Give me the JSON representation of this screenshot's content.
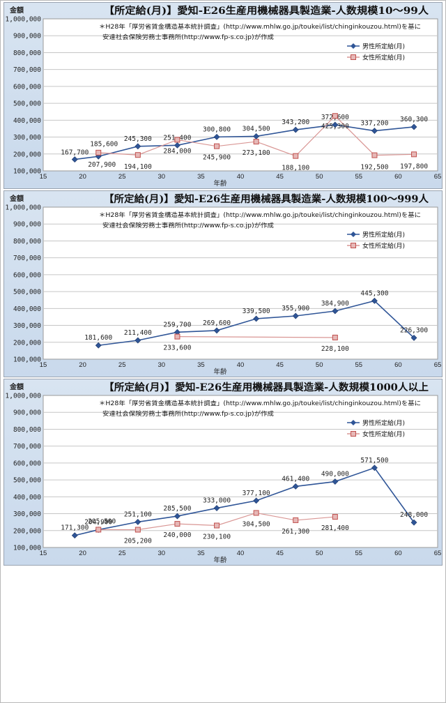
{
  "chart_data": [
    {
      "type": "line",
      "title": "【所定給(月)】愛知-E26生産用機械器具製造業-人数規模10～99人",
      "ylabel": "金額",
      "xlabel": "年齢",
      "note_line1": "＊H28年「厚労省賃金構造基本統計調査」(http://www.mhlw.go.jp/toukei/list/chinginkouzou.html)を基に",
      "note_line2": "安達社会保険労務士事務所(http://www.fp-s.co.jp)が作成",
      "xlim": [
        15,
        65
      ],
      "ylim": [
        100000,
        1000000
      ],
      "x_ticks": [
        15,
        20,
        25,
        30,
        35,
        40,
        45,
        50,
        55,
        60,
        65
      ],
      "y_ticks": [
        "100,000",
        "200,000",
        "300,000",
        "400,000",
        "500,000",
        "600,000",
        "700,000",
        "800,000",
        "900,000",
        "1,000,000"
      ],
      "grid": true,
      "legend_position": "top-right",
      "series": [
        {
          "name": "男性所定給(月)",
          "color": "#2f5597",
          "marker": "diamond",
          "points": [
            {
              "x": 19,
              "y": 167700,
              "label": "167,700"
            },
            {
              "x": 22,
              "y": 185600,
              "label": "185,600"
            },
            {
              "x": 27,
              "y": 245300,
              "label": "245,300"
            },
            {
              "x": 32,
              "y": 251400,
              "label": "251,400"
            },
            {
              "x": 37,
              "y": 300800,
              "label": "300,800"
            },
            {
              "x": 42,
              "y": 304500,
              "label": "304,500"
            },
            {
              "x": 47,
              "y": 343200,
              "label": "343,200"
            },
            {
              "x": 52,
              "y": 372600,
              "label": "372,600"
            },
            {
              "x": 57,
              "y": 337200,
              "label": "337,200"
            },
            {
              "x": 62,
              "y": 360300,
              "label": "360,300"
            }
          ]
        },
        {
          "name": "女性所定給(月)",
          "color": "#c0504d",
          "marker": "square",
          "points": [
            {
              "x": 22,
              "y": 207900,
              "label": "207,900"
            },
            {
              "x": 27,
              "y": 194100,
              "label": "194,100"
            },
            {
              "x": 32,
              "y": 284000,
              "label": "284,000"
            },
            {
              "x": 37,
              "y": 245900,
              "label": "245,900"
            },
            {
              "x": 42,
              "y": 273100,
              "label": "273,100"
            },
            {
              "x": 47,
              "y": 188100,
              "label": "188,100"
            },
            {
              "x": 52,
              "y": 425300,
              "label": "425,300"
            },
            {
              "x": 57,
              "y": 192500,
              "label": "192,500"
            },
            {
              "x": 62,
              "y": 197800,
              "label": "197,800"
            }
          ]
        }
      ]
    },
    {
      "type": "line",
      "title": "【所定給(月)】愛知-E26生産用機械器具製造業-人数規模100～999人",
      "ylabel": "金額",
      "xlabel": "年齢",
      "note_line1": "＊H28年「厚労省賃金構造基本統計調査」(http://www.mhlw.go.jp/toukei/list/chinginkouzou.html)を基に",
      "note_line2": "安達社会保険労務士事務所(http://www.fp-s.co.jp)が作成",
      "xlim": [
        15,
        65
      ],
      "ylim": [
        100000,
        1000000
      ],
      "x_ticks": [
        15,
        20,
        25,
        30,
        35,
        40,
        45,
        50,
        55,
        60,
        65
      ],
      "y_ticks": [
        "100,000",
        "200,000",
        "300,000",
        "400,000",
        "500,000",
        "600,000",
        "700,000",
        "800,000",
        "900,000",
        "1,000,000"
      ],
      "grid": true,
      "legend_position": "top-right",
      "series": [
        {
          "name": "男性所定給(月)",
          "color": "#2f5597",
          "marker": "diamond",
          "points": [
            {
              "x": 22,
              "y": 181600,
              "label": "181,600"
            },
            {
              "x": 27,
              "y": 211400,
              "label": "211,400"
            },
            {
              "x": 32,
              "y": 259700,
              "label": "259,700"
            },
            {
              "x": 37,
              "y": 269600,
              "label": "269,600"
            },
            {
              "x": 42,
              "y": 339500,
              "label": "339,500"
            },
            {
              "x": 47,
              "y": 355900,
              "label": "355,900"
            },
            {
              "x": 52,
              "y": 384900,
              "label": "384,900"
            },
            {
              "x": 57,
              "y": 445300,
              "label": "445,300"
            },
            {
              "x": 62,
              "y": 226300,
              "label": "226,300"
            }
          ]
        },
        {
          "name": "女性所定給(月)",
          "color": "#c0504d",
          "marker": "square",
          "points": [
            {
              "x": 32,
              "y": 233600,
              "label": "233,600"
            },
            {
              "x": 52,
              "y": 228100,
              "label": "228,100"
            }
          ]
        }
      ]
    },
    {
      "type": "line",
      "title": "【所定給(月)】愛知-E26生産用機械器具製造業-人数規模1000人以上",
      "ylabel": "金額",
      "xlabel": "年齢",
      "note_line1": "＊H28年「厚労省賃金構造基本統計調査」(http://www.mhlw.go.jp/toukei/list/chinginkouzou.html)を基に",
      "note_line2": "安達社会保険労務士事務所(http://www.fp-s.co.jp)が作成",
      "xlim": [
        15,
        65
      ],
      "ylim": [
        100000,
        1000000
      ],
      "x_ticks": [
        15,
        20,
        25,
        30,
        35,
        40,
        45,
        50,
        55,
        60,
        65
      ],
      "y_ticks": [
        "100,000",
        "200,000",
        "300,000",
        "400,000",
        "500,000",
        "600,000",
        "700,000",
        "800,000",
        "900,000",
        "1,000,000"
      ],
      "grid": true,
      "legend_position": "top-right",
      "series": [
        {
          "name": "男性所定給(月)",
          "color": "#2f5597",
          "marker": "diamond",
          "points": [
            {
              "x": 19,
              "y": 171300,
              "label": "171,300"
            },
            {
              "x": 22,
              "y": 204900,
              "label": "204,900"
            },
            {
              "x": 27,
              "y": 251100,
              "label": "251,100"
            },
            {
              "x": 32,
              "y": 285500,
              "label": "285,500"
            },
            {
              "x": 37,
              "y": 333000,
              "label": "333,000"
            },
            {
              "x": 42,
              "y": 377100,
              "label": "377,100"
            },
            {
              "x": 47,
              "y": 461400,
              "label": "461,400"
            },
            {
              "x": 52,
              "y": 490000,
              "label": "490,000"
            },
            {
              "x": 57,
              "y": 571500,
              "label": "571,500"
            },
            {
              "x": 62,
              "y": 248000,
              "label": "248,000"
            }
          ]
        },
        {
          "name": "女性所定給(月)",
          "color": "#c0504d",
          "marker": "square",
          "points": [
            {
              "x": 22,
              "y": 205500,
              "label": "205,500"
            },
            {
              "x": 27,
              "y": 205200,
              "label": "205,200"
            },
            {
              "x": 32,
              "y": 240000,
              "label": "240,000"
            },
            {
              "x": 37,
              "y": 230100,
              "label": "230,100"
            },
            {
              "x": 42,
              "y": 304500,
              "label": "304,500"
            },
            {
              "x": 47,
              "y": 261300,
              "label": "261,300"
            },
            {
              "x": 52,
              "y": 281400,
              "label": "281,400"
            }
          ]
        }
      ]
    }
  ]
}
